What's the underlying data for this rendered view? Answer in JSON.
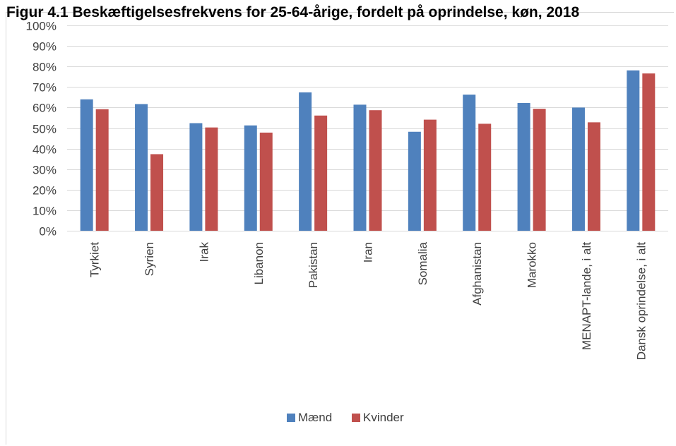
{
  "chart_data": {
    "type": "bar",
    "title": "Figur 4.1 Beskæftigelsesfrekvens for 25-64-årige, fordelt på oprindelse, køn, 2018",
    "categories": [
      "Tyrkiet",
      "Syrien",
      "Irak",
      "Libanon",
      "Pakistan",
      "Iran",
      "Somalia",
      "Afghanistan",
      "Marokko",
      "MENAPT-lande, i alt",
      "Dansk oprindelse, i alt"
    ],
    "series": [
      {
        "name": "Mænd",
        "color": "#4f81bd",
        "values": [
          64,
          61.7,
          52.4,
          51.3,
          67.4,
          61.4,
          48.2,
          66.3,
          62.2,
          60.0,
          78.1
        ]
      },
      {
        "name": "Kvinder",
        "color": "#c0504d",
        "values": [
          59.2,
          37.3,
          50.3,
          47.8,
          56.1,
          58.7,
          54.1,
          52.1,
          59.4,
          52.8,
          76.6
        ]
      }
    ],
    "y_ticks": [
      "0%",
      "10%",
      "20%",
      "30%",
      "40%",
      "50%",
      "60%",
      "70%",
      "80%",
      "90%",
      "100%"
    ],
    "ylim": [
      0,
      100
    ],
    "legend_position": "bottom",
    "grid": true,
    "gridline_color": "#d9d9d9"
  }
}
